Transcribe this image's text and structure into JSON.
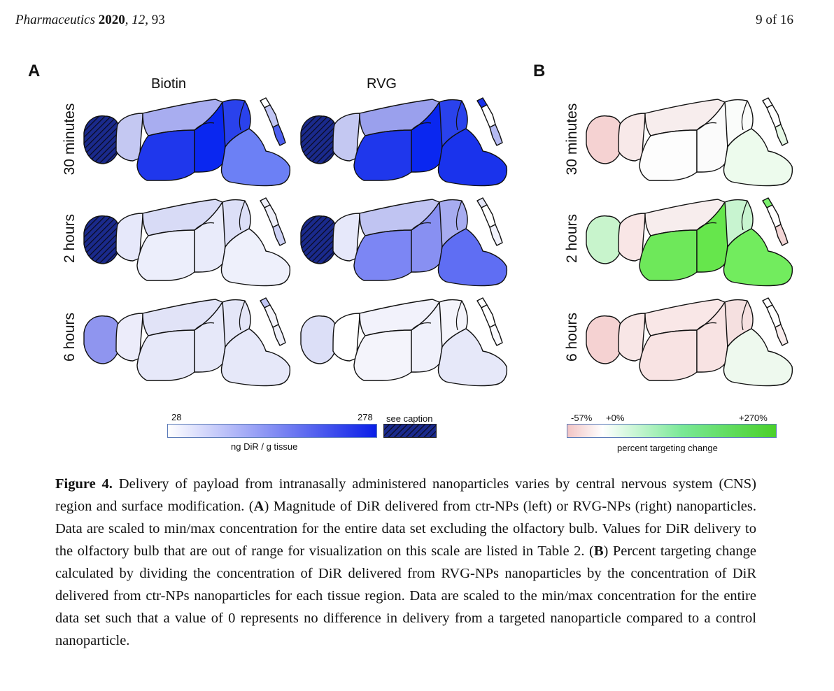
{
  "header": {
    "journal": "Pharmaceutics",
    "year": "2020",
    "volume": "12",
    "article": "93",
    "page": "9 of 16"
  },
  "panels": {
    "a": {
      "letter": "A",
      "columns": [
        "Biotin",
        "RVG"
      ]
    },
    "b": {
      "letter": "B"
    }
  },
  "rows": [
    "30 minutes",
    "2 hours",
    "6 hours"
  ],
  "colorbar_a": {
    "min_label": "28",
    "max_label": "278",
    "unit_label": "ng DiR / g tissue",
    "see_caption": "see caption"
  },
  "colorbar_b": {
    "neg_label": "-57%",
    "zero_label": "+0%",
    "pos_label": "+270%",
    "unit_label": "percent targeting change"
  },
  "colors": {
    "hatch_bg": "#1a2a8c",
    "hatch_line": "#0a0a20",
    "a": {
      "biotin": [
        [
          "hatch",
          "#c4c8f2",
          "#a8adf0",
          "#1f37ec",
          "#0a27f0",
          "#2a42ec",
          "#ffffff",
          "#c0c5f4",
          "#4d5ff0",
          "#6c80f5"
        ],
        [
          "hatch",
          "#e6e8fa",
          "#d8dbf6",
          "#eceefb",
          "#e9ebfa",
          "#dcdff7",
          "#eeeff9",
          "#eeeff9",
          "#cdd1f4",
          "#eef0fb"
        ],
        [
          "#8f95ef",
          "#ececfa",
          "#e1e3f7",
          "#e6e8f9",
          "#e6e8f9",
          "#e4e6f8",
          "#c0c5f4",
          "#f4f4fb",
          "#eeeff9",
          "#e6e8f9"
        ]
      ],
      "rvg": [
        [
          "hatch",
          "#c4c8f2",
          "#9aa0ed",
          "#1f37ec",
          "#0a27f0",
          "#2a42ec",
          "#1931ea",
          "#ffffff",
          "#b5baf2",
          "#1a33ec"
        ],
        [
          "hatch",
          "#e6e8fa",
          "#c0c4f2",
          "#7c86f4",
          "#8890f2",
          "#a7acf0",
          "#e4e6f8",
          "#ffffff",
          "#f0f1fb",
          "#5f6ef3"
        ],
        [
          "#dcdff7",
          "#ffffff",
          "#f2f2fb",
          "#f4f4fb",
          "#f0f1fb",
          "#f4f4fb",
          "#ffffff",
          "#ffffff",
          "#fafafe",
          "#e6e8f9"
        ]
      ]
    },
    "b": [
      [
        "#f5d2d2",
        "#f8e9e9",
        "#f7eded",
        "#fdfdfd",
        "#fbfbfb",
        "#fafcfa",
        "#ffffff",
        "#ffffff",
        "#e6f8e6",
        "#edfbed"
      ],
      [
        "#c8f4cc",
        "#f9e6e6",
        "#f7eded",
        "#6ee85a",
        "#66e64c",
        "#c8f4d0",
        "#7bf06e",
        "#ffffff",
        "#f2d5d5",
        "#72ec5e"
      ],
      [
        "#f5d2d2",
        "#f8e6e6",
        "#f9e7e7",
        "#f8e3e3",
        "#f8e3e3",
        "#f5e0e0",
        "#ffffff",
        "#ffffff",
        "#f8ecec",
        "#eef9ee"
      ]
    ]
  },
  "caption": {
    "figure_label": "Figure 4.",
    "text_1": " Delivery of payload from intranasally administered nanoparticles varies by central nervous system (CNS) region and surface modification. (",
    "ref_a": "A",
    "text_2": ") Magnitude of DiR delivered from ctr-NPs (left) or RVG-NPs (right) nanoparticles. Data are scaled to min/max concentration for the entire data set excluding the olfactory bulb. Values for DiR delivery to the olfactory bulb that are out of range for visualization on this scale are listed in Table 2. (",
    "ref_b": "B",
    "text_3": ") Percent targeting change calculated by dividing the concentration of DiR delivered from RVG-NPs nanoparticles by the concentration of DiR delivered from ctr-NPs nanoparticles for each tissue region. Data are scaled to the min/max concentration for the entire data set such that a value of 0 represents no difference in delivery from a targeted nanoparticle compared to a control nanoparticle."
  }
}
